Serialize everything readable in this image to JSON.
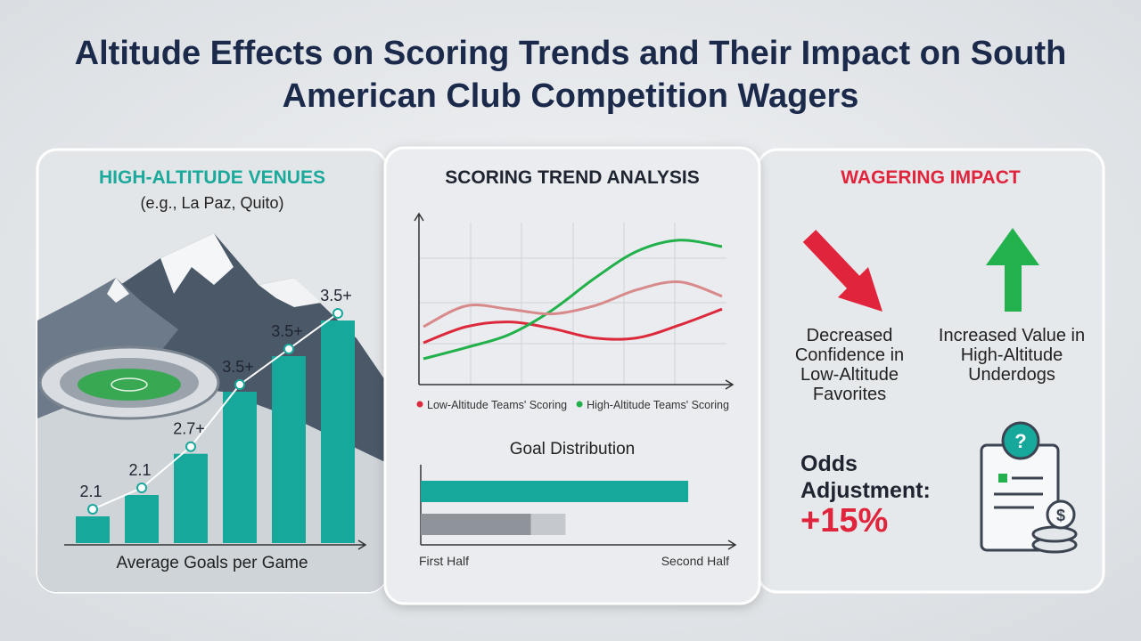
{
  "title": "Altitude Effects on Scoring Trends and Their Impact on South American Club Competition Wagers",
  "panels": [
    {
      "heading": "HIGH-ALTITUDE VENUES",
      "subheading": "(e.g., La Paz, Quito)"
    },
    {
      "heading": "SCORING TREND ANALYSIS"
    },
    {
      "heading": "WAGERING IMPACT",
      "items": [
        "Decreased Confidence in Low-Altitude Favorites",
        "Increased Value in High-Altitude Underdogs"
      ],
      "odds_label": "Odds Adjustment:",
      "odds_value": "+15%"
    }
  ],
  "chart_data": [
    {
      "type": "bar",
      "x_label": "Average Goals per Game",
      "values": [
        2.1,
        2.1,
        2.7,
        3.5,
        3.5,
        3.5
      ],
      "value_labels": [
        "2.1",
        "2.1",
        "2.7+",
        "3.5+",
        "3.5+",
        "3.5+"
      ],
      "color": "#17a89c"
    },
    {
      "type": "line",
      "ylim": [
        0,
        10
      ],
      "series": [
        {
          "name": "Low-Altitude Teams' Scoring",
          "color": "#dc2a3c",
          "values": [
            2.5,
            3.5,
            3.8,
            3.4,
            2.8,
            2.8,
            3.6,
            4.6
          ]
        },
        {
          "name": "High-Altitude Teams' Scoring",
          "color": "#22b04b",
          "values": [
            1.5,
            2.2,
            3.0,
            4.5,
            6.5,
            8.2,
            8.9,
            8.5
          ]
        },
        {
          "color": "#d88a8a",
          "values": [
            3.5,
            4.8,
            4.6,
            4.3,
            4.8,
            5.8,
            6.3,
            5.4
          ]
        }
      ]
    },
    {
      "type": "hbar",
      "title": "Goal Distribution",
      "xlim": [
        0,
        100
      ],
      "x_start_label": "First Half",
      "x_end_label": "Second Half",
      "categories": [
        null,
        null
      ],
      "series": [
        {
          "color": "#17a89c",
          "values": [
            85,
            null
          ]
        },
        {
          "color": "#8f949a",
          "values": [
            null,
            35
          ]
        },
        {
          "color": "#c5c8cc",
          "values": [
            null,
            11
          ]
        }
      ]
    }
  ]
}
